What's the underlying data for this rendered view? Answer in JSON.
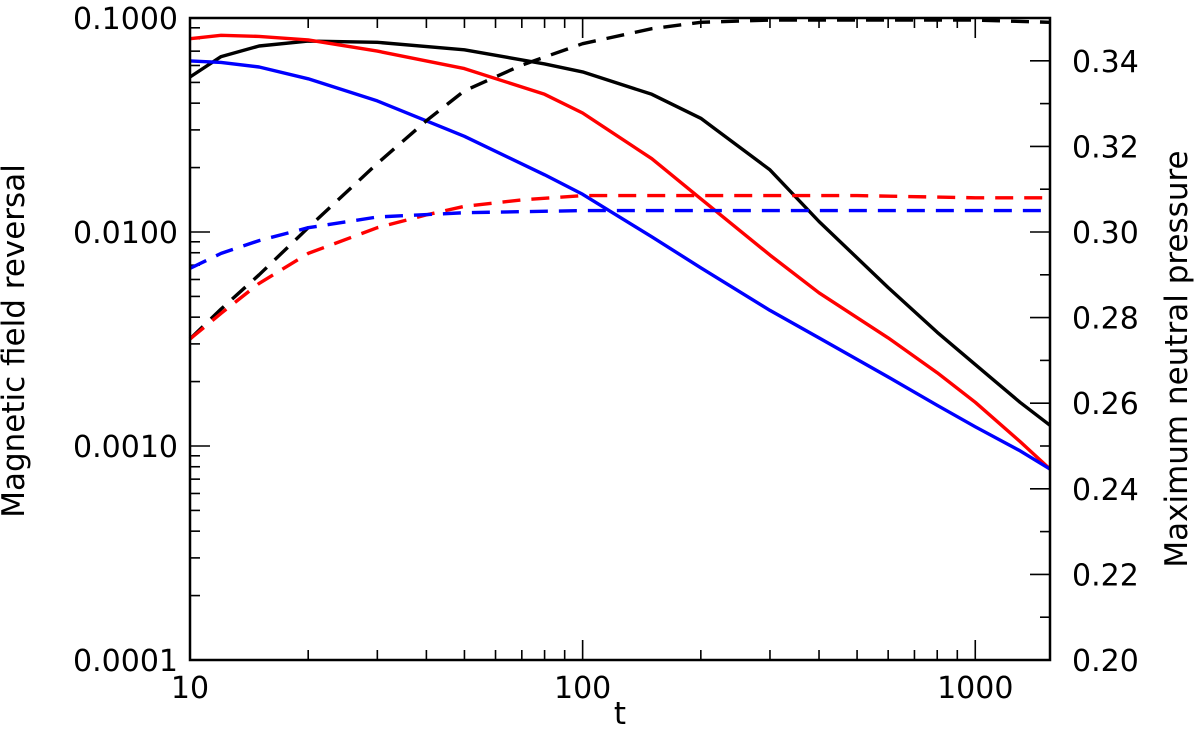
{
  "chart_data": {
    "type": "line",
    "xlabel": "t",
    "ylabel_left": "Magnetic field reversal",
    "ylabel_right": "Maximum neutral pressure",
    "xscale": "log",
    "yscale_left": "log",
    "yscale_right": "linear",
    "xlim": [
      10,
      1550
    ],
    "ylim_left": [
      0.0001,
      0.1
    ],
    "ylim_right": [
      0.2,
      0.35
    ],
    "x_ticks": [
      "10",
      "100",
      "1000"
    ],
    "y_left_ticks": [
      "0.0001",
      "0.0010",
      "0.0100",
      "0.1000"
    ],
    "y_right_ticks": [
      "0.20",
      "0.22",
      "0.24",
      "0.26",
      "0.28",
      "0.30",
      "0.32",
      "0.34"
    ],
    "grid": false,
    "series": [
      {
        "axis": "left",
        "style": "solid",
        "color": "#000000",
        "points": [
          [
            10,
            0.053
          ],
          [
            12,
            0.066
          ],
          [
            15,
            0.074
          ],
          [
            20,
            0.078
          ],
          [
            30,
            0.077
          ],
          [
            50,
            0.071
          ],
          [
            80,
            0.061
          ],
          [
            100,
            0.056
          ],
          [
            150,
            0.044
          ],
          [
            200,
            0.034
          ],
          [
            300,
            0.0195
          ],
          [
            400,
            0.0112
          ],
          [
            600,
            0.0055
          ],
          [
            800,
            0.0034
          ],
          [
            1000,
            0.0024
          ],
          [
            1300,
            0.0016
          ],
          [
            1550,
            0.00125
          ]
        ]
      },
      {
        "axis": "left",
        "style": "solid",
        "color": "#ff0000",
        "points": [
          [
            10,
            0.08
          ],
          [
            12,
            0.083
          ],
          [
            15,
            0.082
          ],
          [
            20,
            0.079
          ],
          [
            30,
            0.07
          ],
          [
            50,
            0.058
          ],
          [
            80,
            0.044
          ],
          [
            100,
            0.036
          ],
          [
            150,
            0.022
          ],
          [
            200,
            0.0143
          ],
          [
            300,
            0.0078
          ],
          [
            400,
            0.0052
          ],
          [
            600,
            0.0032
          ],
          [
            800,
            0.0022
          ],
          [
            1000,
            0.0016
          ],
          [
            1300,
            0.00105
          ],
          [
            1550,
            0.00078
          ]
        ]
      },
      {
        "axis": "left",
        "style": "solid",
        "color": "#0000ff",
        "points": [
          [
            10,
            0.063
          ],
          [
            12,
            0.062
          ],
          [
            15,
            0.059
          ],
          [
            20,
            0.052
          ],
          [
            30,
            0.041
          ],
          [
            50,
            0.028
          ],
          [
            80,
            0.0185
          ],
          [
            100,
            0.015
          ],
          [
            150,
            0.0095
          ],
          [
            200,
            0.0068
          ],
          [
            300,
            0.0043
          ],
          [
            400,
            0.0032
          ],
          [
            600,
            0.0021
          ],
          [
            800,
            0.00155
          ],
          [
            1000,
            0.00123
          ],
          [
            1300,
            0.00095
          ],
          [
            1550,
            0.00078
          ]
        ]
      },
      {
        "axis": "right",
        "style": "dashed",
        "color": "#000000",
        "points": [
          [
            10,
            0.275
          ],
          [
            12,
            0.282
          ],
          [
            15,
            0.29
          ],
          [
            20,
            0.301
          ],
          [
            30,
            0.316
          ],
          [
            40,
            0.326
          ],
          [
            50,
            0.333
          ],
          [
            70,
            0.339
          ],
          [
            100,
            0.344
          ],
          [
            150,
            0.3475
          ],
          [
            200,
            0.349
          ],
          [
            300,
            0.3495
          ],
          [
            500,
            0.3495
          ],
          [
            1000,
            0.3495
          ],
          [
            1550,
            0.349
          ]
        ]
      },
      {
        "axis": "right",
        "style": "dashed",
        "color": "#ff0000",
        "points": [
          [
            10,
            0.275
          ],
          [
            12,
            0.281
          ],
          [
            15,
            0.288
          ],
          [
            20,
            0.295
          ],
          [
            30,
            0.301
          ],
          [
            40,
            0.304
          ],
          [
            50,
            0.306
          ],
          [
            70,
            0.3075
          ],
          [
            100,
            0.3085
          ],
          [
            200,
            0.3085
          ],
          [
            500,
            0.3085
          ],
          [
            1000,
            0.308
          ],
          [
            1550,
            0.308
          ]
        ]
      },
      {
        "axis": "right",
        "style": "dashed",
        "color": "#0000ff",
        "points": [
          [
            10,
            0.2915
          ],
          [
            12,
            0.295
          ],
          [
            15,
            0.298
          ],
          [
            20,
            0.301
          ],
          [
            30,
            0.3035
          ],
          [
            50,
            0.3045
          ],
          [
            100,
            0.305
          ],
          [
            200,
            0.305
          ],
          [
            500,
            0.305
          ],
          [
            1000,
            0.305
          ],
          [
            1550,
            0.305
          ]
        ]
      }
    ]
  }
}
